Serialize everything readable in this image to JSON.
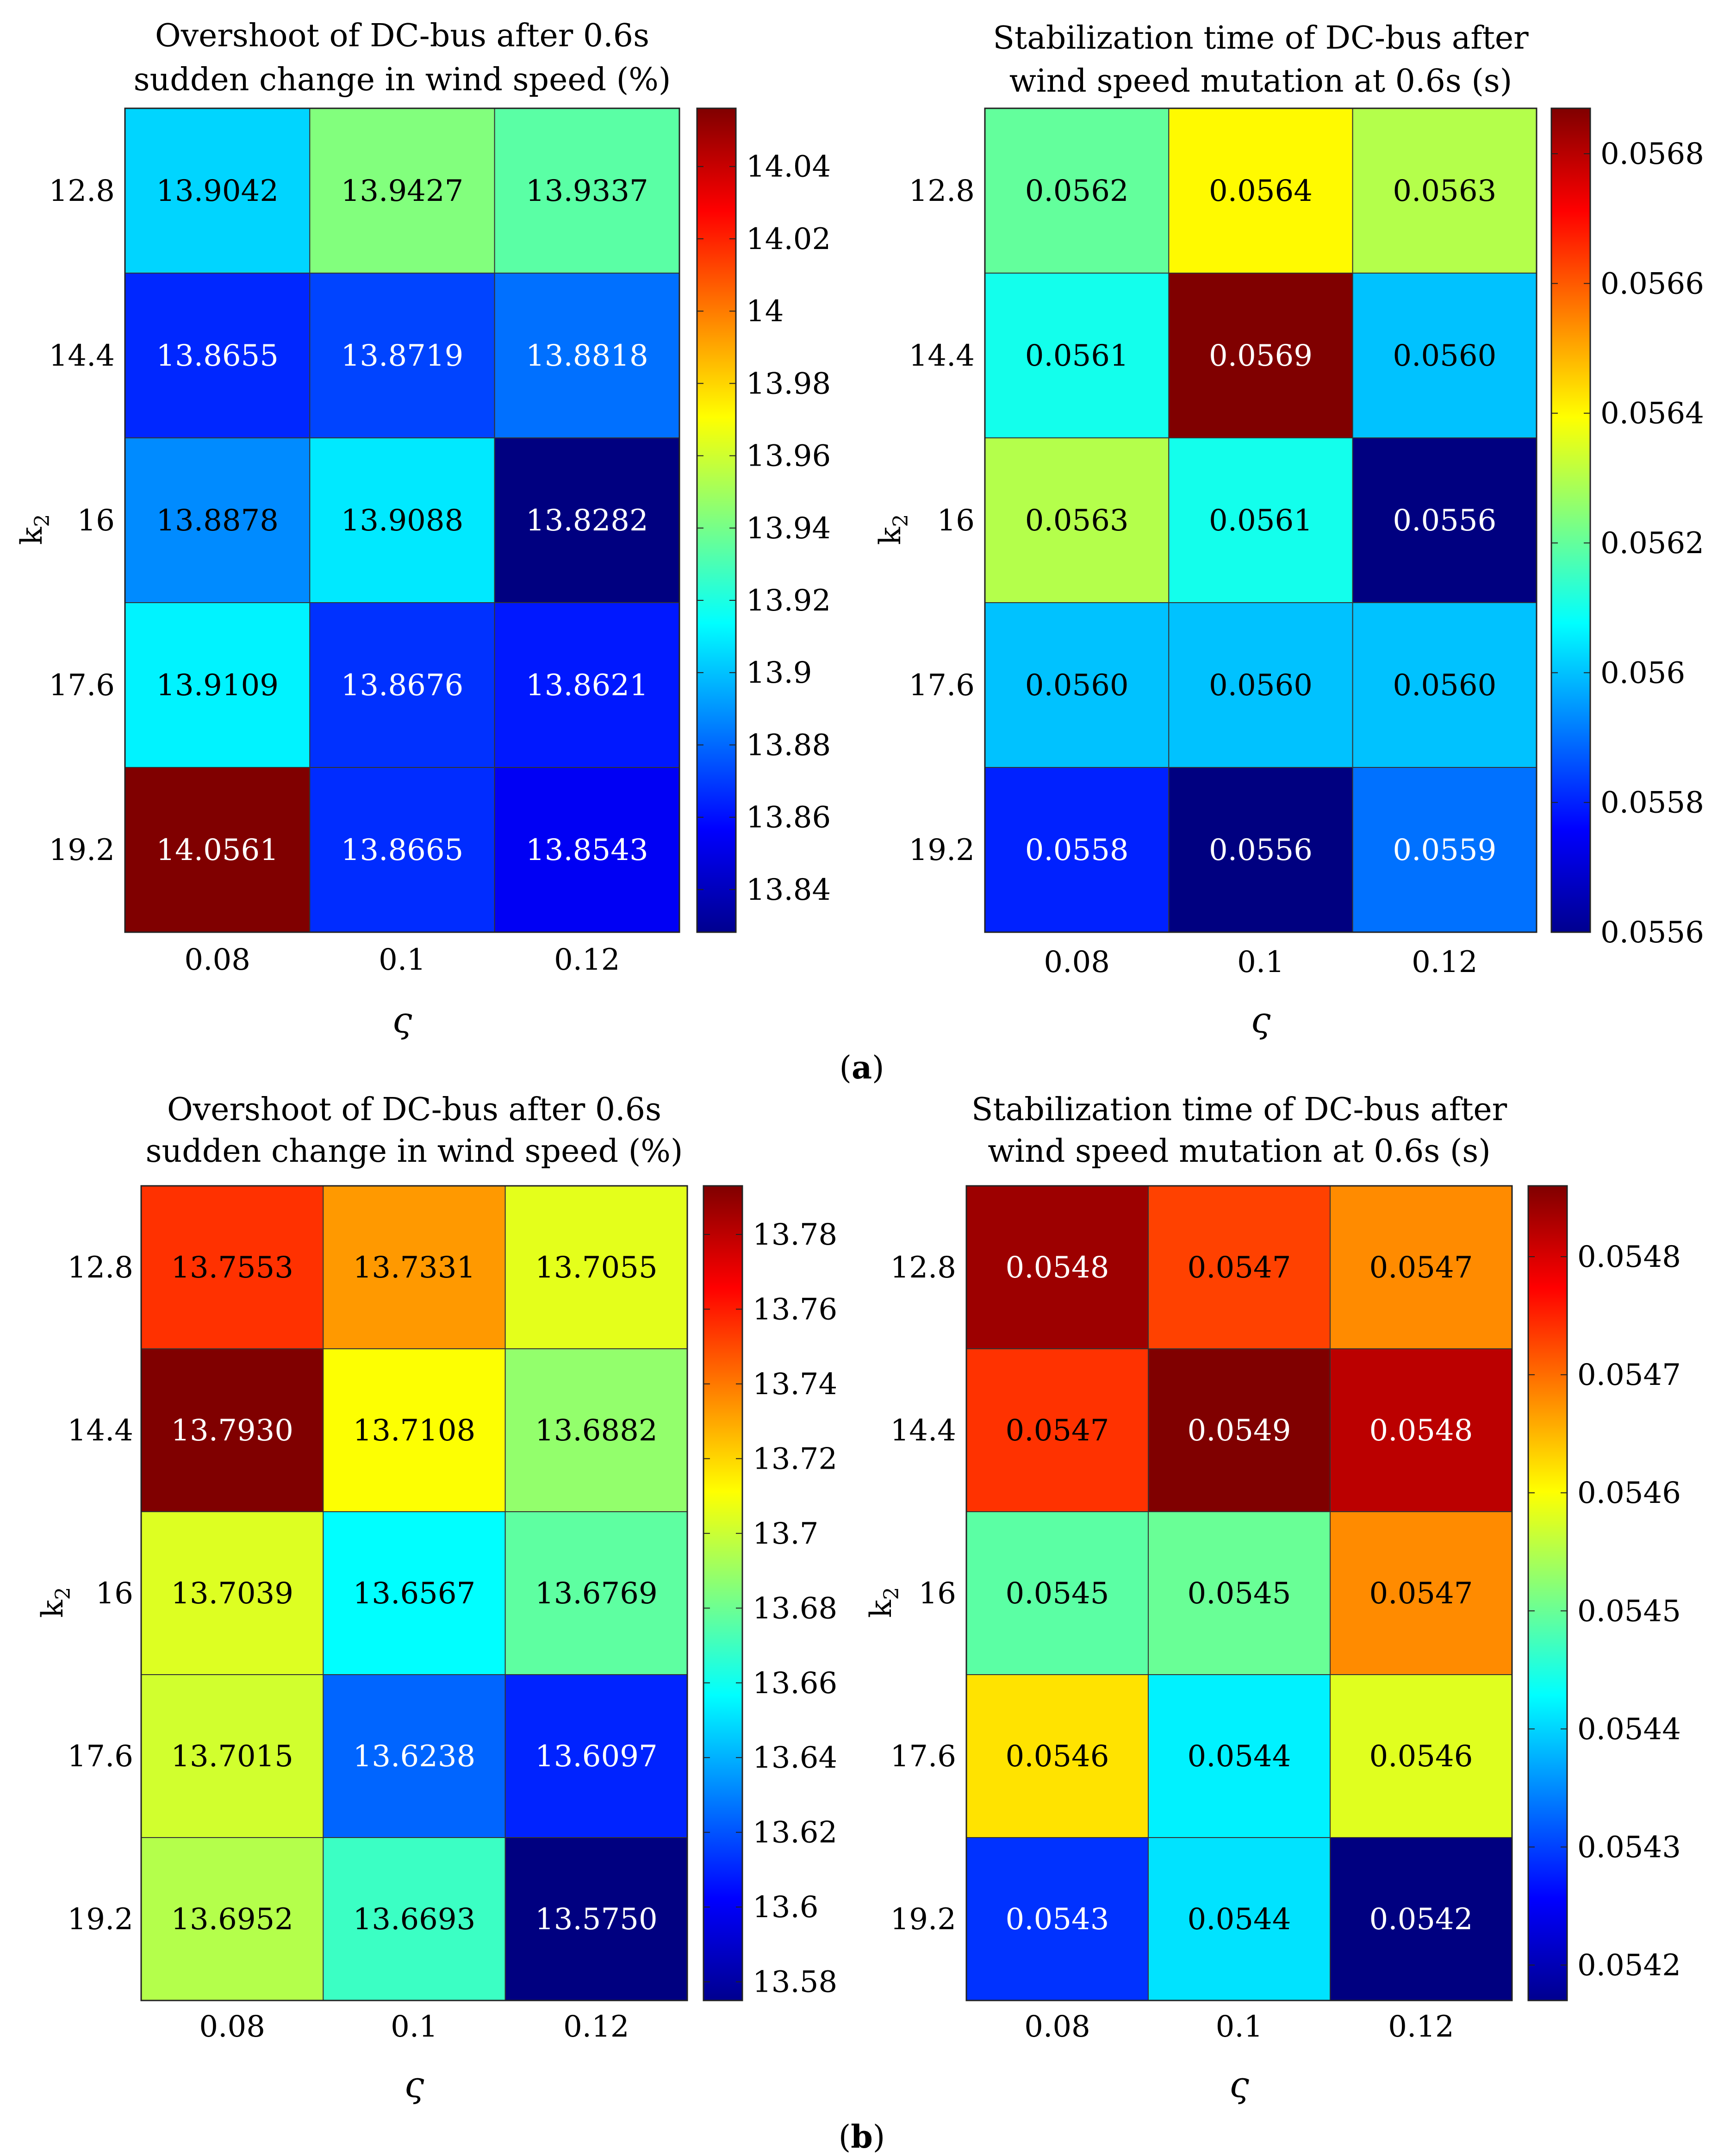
{
  "figure": {
    "panels": [
      {
        "label_open": "(",
        "label_letter": "a",
        "label_close": ")"
      },
      {
        "label_open": "(",
        "label_letter": "b",
        "label_close": ")"
      }
    ]
  },
  "chart_data": [
    {
      "type": "heatmap",
      "panel": "a",
      "title": [
        "Overshoot of DC-bus after 0.6s",
        "sudden change in wind speed (%)"
      ],
      "xlabel": "ς",
      "ylabel_main": "k",
      "ylabel_sub": "2",
      "x_ticks": [
        "0.08",
        "0.1",
        "0.12"
      ],
      "y_ticks": [
        "12.8",
        "14.4",
        "16",
        "17.6",
        "19.2"
      ],
      "values": [
        [
          "13.9042",
          "13.9427",
          "13.9337"
        ],
        [
          "13.8655",
          "13.8719",
          "13.8818"
        ],
        [
          "13.8878",
          "13.9088",
          "13.8282"
        ],
        [
          "13.9109",
          "13.8676",
          "13.8621"
        ],
        [
          "14.0561",
          "13.8665",
          "13.8543"
        ]
      ],
      "colorbar": {
        "range": [
          13.8282,
          14.0561
        ],
        "ticks": [
          "13.84",
          "13.86",
          "13.88",
          "13.9",
          "13.92",
          "13.94",
          "13.96",
          "13.98",
          "14",
          "14.02",
          "14.04"
        ]
      }
    },
    {
      "type": "heatmap",
      "panel": "a",
      "title": [
        "Stabilization time of DC-bus after",
        "wind speed mutation at 0.6s (s)"
      ],
      "xlabel": "ς",
      "ylabel_main": "k",
      "ylabel_sub": "2",
      "x_ticks": [
        "0.08",
        "0.1",
        "0.12"
      ],
      "y_ticks": [
        "12.8",
        "14.4",
        "16",
        "17.6",
        "19.2"
      ],
      "values": [
        [
          "0.0562",
          "0.0564",
          "0.0563"
        ],
        [
          "0.0561",
          "0.0569",
          "0.0560"
        ],
        [
          "0.0563",
          "0.0561",
          "0.0556"
        ],
        [
          "0.0560",
          "0.0560",
          "0.0560"
        ],
        [
          "0.0558",
          "0.0556",
          "0.0559"
        ]
      ],
      "colorbar": {
        "range": [
          0.0556,
          0.05687
        ],
        "ticks": [
          "0.0556",
          "0.0558",
          "0.056",
          "0.0562",
          "0.0564",
          "0.0566",
          "0.0568"
        ]
      }
    },
    {
      "type": "heatmap",
      "panel": "b",
      "title": [
        "Overshoot of DC-bus after 0.6s",
        "sudden change in wind speed (%)"
      ],
      "xlabel": "ς",
      "ylabel_main": "k",
      "ylabel_sub": "2",
      "x_ticks": [
        "0.08",
        "0.1",
        "0.12"
      ],
      "y_ticks": [
        "12.8",
        "14.4",
        "16",
        "17.6",
        "19.2"
      ],
      "values": [
        [
          "13.7553",
          "13.7331",
          "13.7055"
        ],
        [
          "13.7930",
          "13.7108",
          "13.6882"
        ],
        [
          "13.7039",
          "13.6567",
          "13.6769"
        ],
        [
          "13.7015",
          "13.6238",
          "13.6097"
        ],
        [
          "13.6952",
          "13.6693",
          "13.5750"
        ]
      ],
      "colorbar": {
        "range": [
          13.575,
          13.793
        ],
        "ticks": [
          "13.58",
          "13.6",
          "13.62",
          "13.64",
          "13.66",
          "13.68",
          "13.7",
          "13.72",
          "13.74",
          "13.76",
          "13.78"
        ]
      }
    },
    {
      "type": "heatmap",
      "panel": "b",
      "title": [
        "Stabilization time of DC-bus after",
        "wind speed mutation at 0.6s (s)"
      ],
      "xlabel": "ς",
      "ylabel_main": "k",
      "ylabel_sub": "2",
      "x_ticks": [
        "0.08",
        "0.1",
        "0.12"
      ],
      "y_ticks": [
        "12.8",
        "14.4",
        "16",
        "17.6",
        "19.2"
      ],
      "values": [
        [
          "0.0548",
          "0.0547",
          "0.0547"
        ],
        [
          "0.0547",
          "0.0549",
          "0.0548"
        ],
        [
          "0.0545",
          "0.0545",
          "0.0547"
        ],
        [
          "0.0546",
          "0.0544",
          "0.0546"
        ],
        [
          "0.0543",
          "0.0544",
          "0.0542"
        ]
      ],
      "colorbar": {
        "range": [
          0.05417,
          0.05486
        ],
        "ticks": [
          "0.0542",
          "0.0543",
          "0.0544",
          "0.0545",
          "0.0546",
          "0.0547",
          "0.0548"
        ]
      },
      "color_values": [
        [
          0.05484,
          0.05473,
          0.05468
        ],
        [
          0.05474,
          0.05487,
          0.05482
        ],
        [
          0.05449,
          0.0545,
          0.05468
        ],
        [
          0.05462,
          0.05442,
          0.05458
        ],
        [
          0.05429,
          0.05441,
          0.05417
        ]
      ]
    }
  ]
}
